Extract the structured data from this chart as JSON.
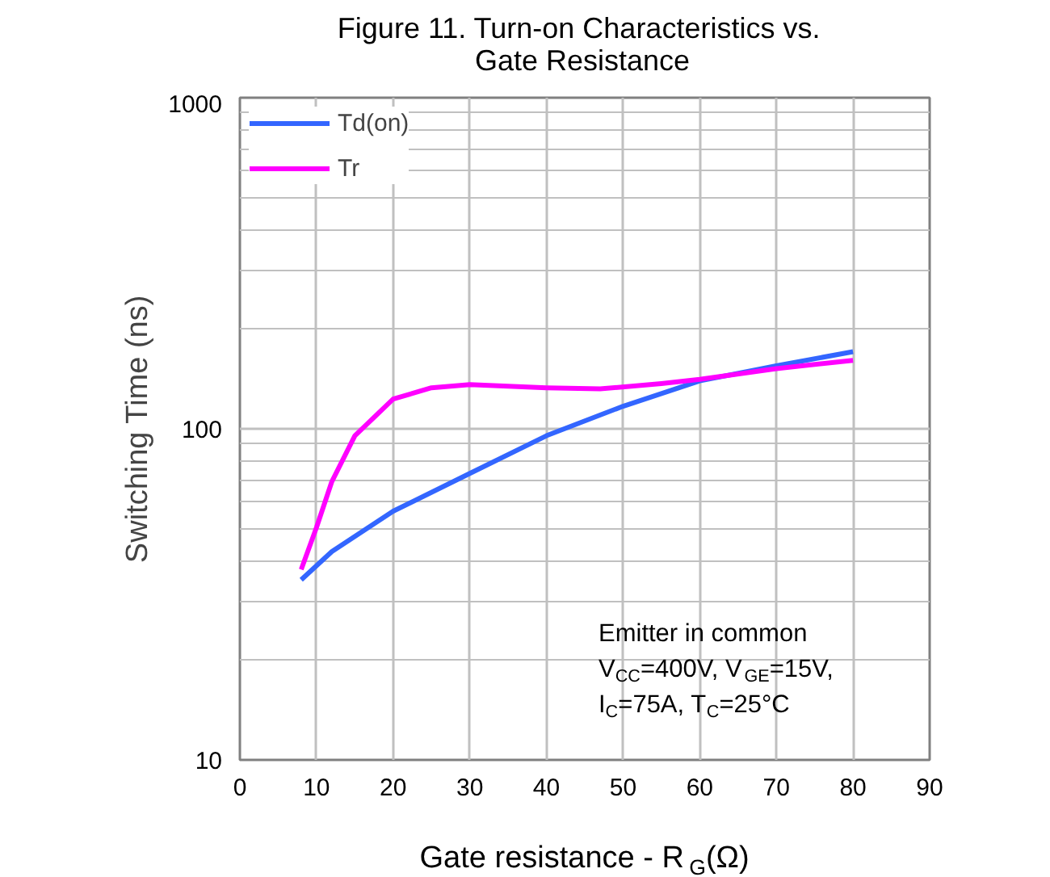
{
  "chart_data": {
    "type": "line",
    "title": "Figure 11. Turn-on Characteristics vs. Gate Resistance",
    "xlabel": "Gate resistance - R$_{G}$(Ω)",
    "ylabel": "Switching Time (ns)",
    "x": [
      8,
      10,
      12,
      15,
      20,
      25,
      30,
      40,
      47,
      55,
      60,
      70,
      80
    ],
    "series": [
      {
        "name": "Td(on)",
        "color": "#3366ff",
        "x": [
          8,
          12,
          20,
          30,
          40,
          50,
          60,
          70,
          80
        ],
        "values": [
          35,
          42.6,
          56.4,
          73.3,
          95.3,
          117,
          139.6,
          155,
          171
        ]
      },
      {
        "name": "Tr",
        "color": "#ff00ff",
        "values": [
          37.6,
          50.4,
          69.3,
          95.3,
          123,
          133,
          136,
          133,
          132,
          137,
          141,
          152,
          161
        ]
      }
    ],
    "xlim": [
      0,
      90
    ],
    "xticks": [
      0,
      10,
      20,
      30,
      40,
      50,
      60,
      70,
      80,
      90
    ],
    "ylim": [
      10,
      1000
    ],
    "yticks": [
      10,
      100,
      1000
    ],
    "log": true,
    "grid": true,
    "legend": "top left",
    "annotations": [
      "Emitter in common",
      "V$_{CC}$=400V, V$_{GE}$=15V,",
      "I$_{C}$=75A, T$_{C}$=25°C"
    ]
  }
}
